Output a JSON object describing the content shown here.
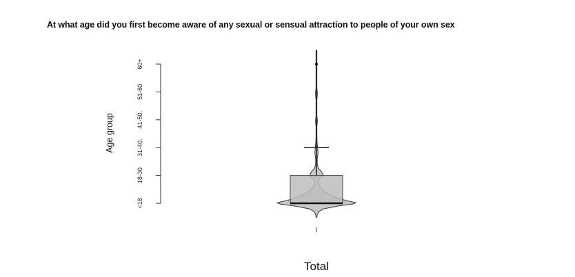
{
  "chart_data": {
    "type": "violin-box",
    "title": "At what age did you first become aware of any sexual or sensual attraction to people of your own sex",
    "xlabel": "",
    "ylabel": "Age group",
    "categories": [
      "Total"
    ],
    "y_tick_labels": [
      "<18",
      "18-30",
      "31-40.",
      "41-50.",
      "51-60",
      "60+"
    ],
    "y_tick_values": [
      1,
      2,
      3,
      4,
      5,
      6
    ],
    "ylim": [
      1,
      6
    ],
    "box": {
      "min": 1,
      "q1": 1,
      "median": 1,
      "q3": 2,
      "whisker_high": 3,
      "outliers": [
        6
      ]
    },
    "density": [
      {
        "y": 0.5,
        "w": 0.0
      },
      {
        "y": 0.6,
        "w": 0.02
      },
      {
        "y": 0.7,
        "w": 0.06
      },
      {
        "y": 0.8,
        "w": 0.18
      },
      {
        "y": 0.9,
        "w": 0.55
      },
      {
        "y": 0.97,
        "w": 0.92
      },
      {
        "y": 1.02,
        "w": 1.0
      },
      {
        "y": 1.1,
        "w": 0.75
      },
      {
        "y": 1.25,
        "w": 0.42
      },
      {
        "y": 1.4,
        "w": 0.22
      },
      {
        "y": 1.55,
        "w": 0.1
      },
      {
        "y": 1.7,
        "w": 0.04
      },
      {
        "y": 1.85,
        "w": 0.06
      },
      {
        "y": 1.95,
        "w": 0.16
      },
      {
        "y": 2.05,
        "w": 0.16
      },
      {
        "y": 2.15,
        "w": 0.12
      },
      {
        "y": 2.25,
        "w": 0.05
      },
      {
        "y": 2.4,
        "w": 0.02
      },
      {
        "y": 2.6,
        "w": 0.02
      },
      {
        "y": 2.8,
        "w": 0.04
      },
      {
        "y": 3.0,
        "w": 0.03
      },
      {
        "y": 3.2,
        "w": 0.015
      },
      {
        "y": 3.5,
        "w": 0.005
      },
      {
        "y": 3.75,
        "w": 0.01
      },
      {
        "y": 3.95,
        "w": 0.025
      },
      {
        "y": 4.15,
        "w": 0.01
      },
      {
        "y": 4.4,
        "w": 0.005
      },
      {
        "y": 4.7,
        "w": 0.01
      },
      {
        "y": 4.95,
        "w": 0.025
      },
      {
        "y": 5.15,
        "w": 0.01
      },
      {
        "y": 5.5,
        "w": 0.005
      },
      {
        "y": 6.0,
        "w": 0.005
      },
      {
        "y": 6.5,
        "w": 0.0
      }
    ],
    "grid": false,
    "legend": "none"
  }
}
